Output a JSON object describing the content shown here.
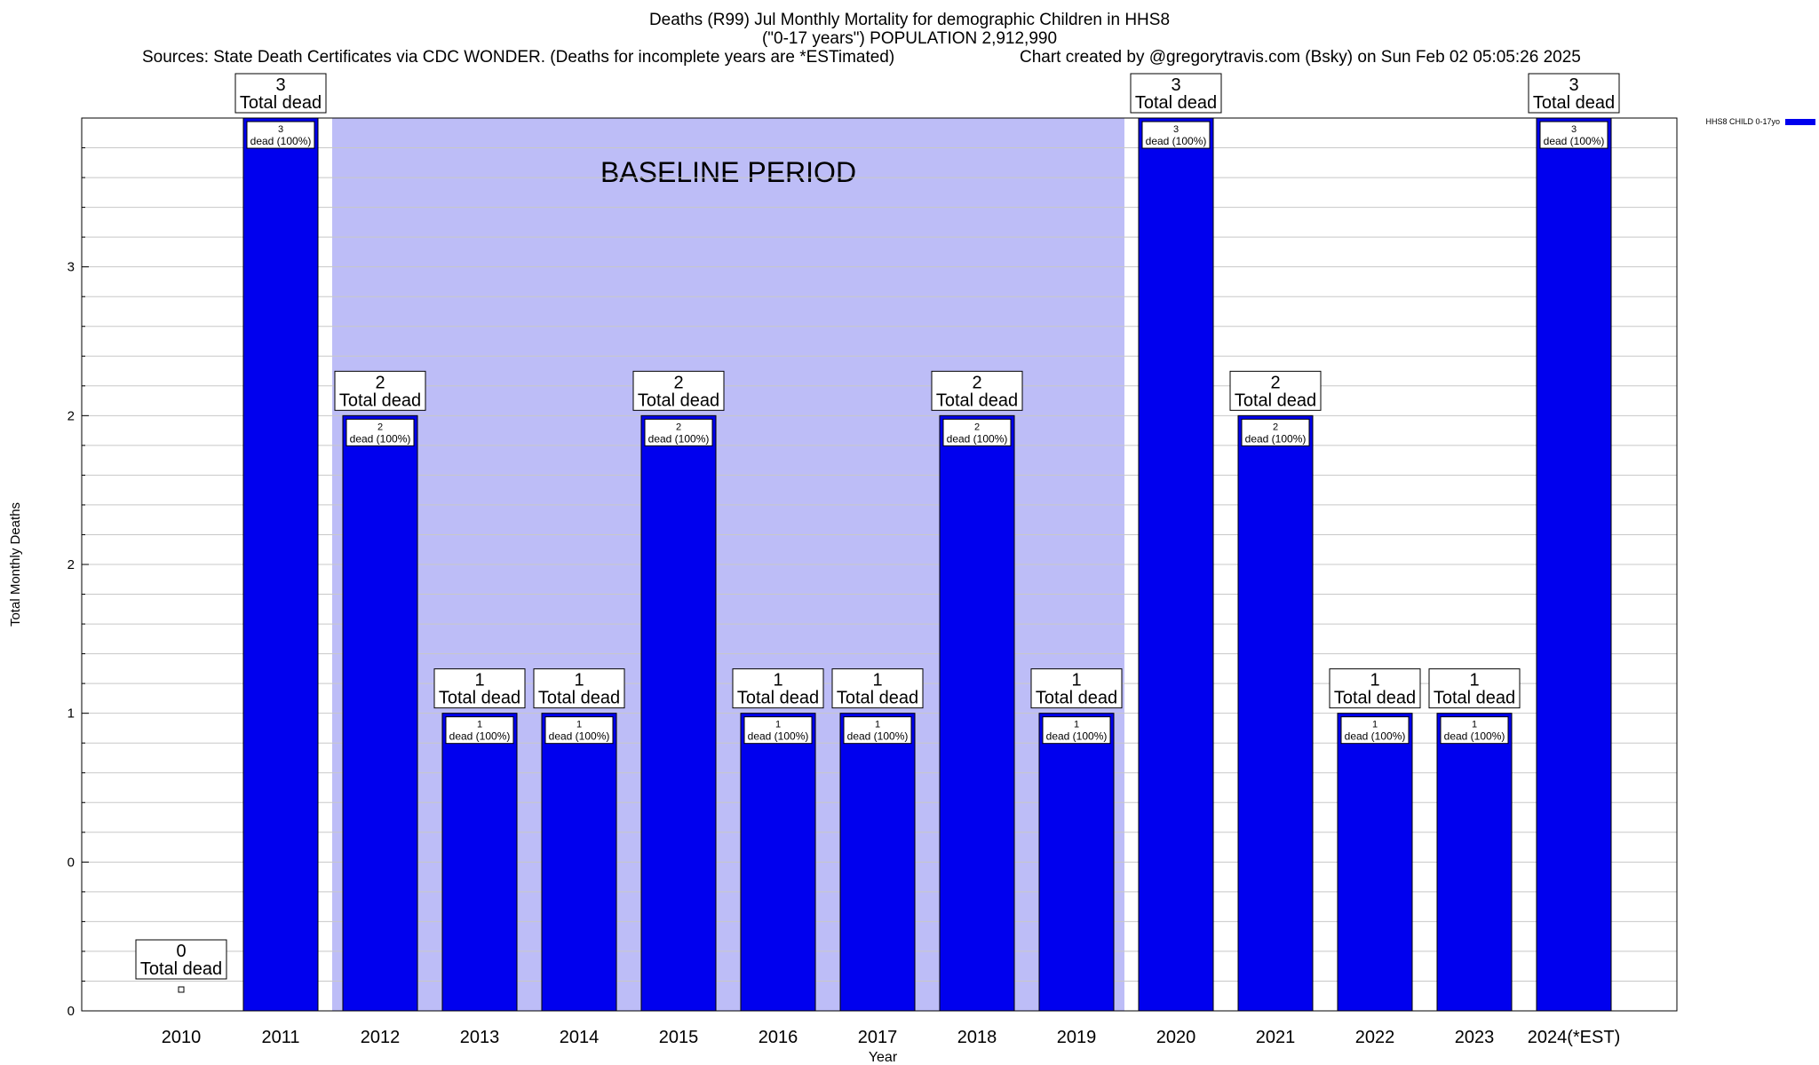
{
  "chart_data": {
    "type": "bar",
    "title": "Deaths (R99) Jul Monthly Mortality for demographic Children in HHS8",
    "title_line2": "(\"0-17 years\") POPULATION 2,912,990",
    "sources": "Sources: State Death Certificates via CDC WONDER. (Deaths for incomplete years are *ESTimated)",
    "credit": "Chart created by @gregorytravis.com (Bsky) on Sun Feb 02 05:05:26 2025",
    "xlabel": "Year",
    "ylabel": "Total Monthly Deaths",
    "ylim": [
      0,
      3
    ],
    "y_tick_labels": [
      "0",
      "0",
      "1",
      "2",
      "2",
      "3"
    ],
    "grid": true,
    "legend": {
      "position": "top-right",
      "label": "HHS8 CHILD 0-17yo",
      "color": "#0000ee"
    },
    "baseline": {
      "label": "BASELINE PERIOD",
      "start": "2012",
      "end": "2019",
      "color": "#bdbdf7"
    },
    "bar_color": "#0000ee",
    "total_label_suffix": "Total dead",
    "bar_label_suffix": "dead (100%)",
    "categories": [
      "2010",
      "2011",
      "2012",
      "2013",
      "2014",
      "2015",
      "2016",
      "2017",
      "2018",
      "2019",
      "2020",
      "2021",
      "2022",
      "2023",
      "2024(*EST)"
    ],
    "values": [
      0,
      3,
      2,
      1,
      1,
      2,
      1,
      1,
      2,
      1,
      3,
      2,
      1,
      1,
      3
    ]
  }
}
